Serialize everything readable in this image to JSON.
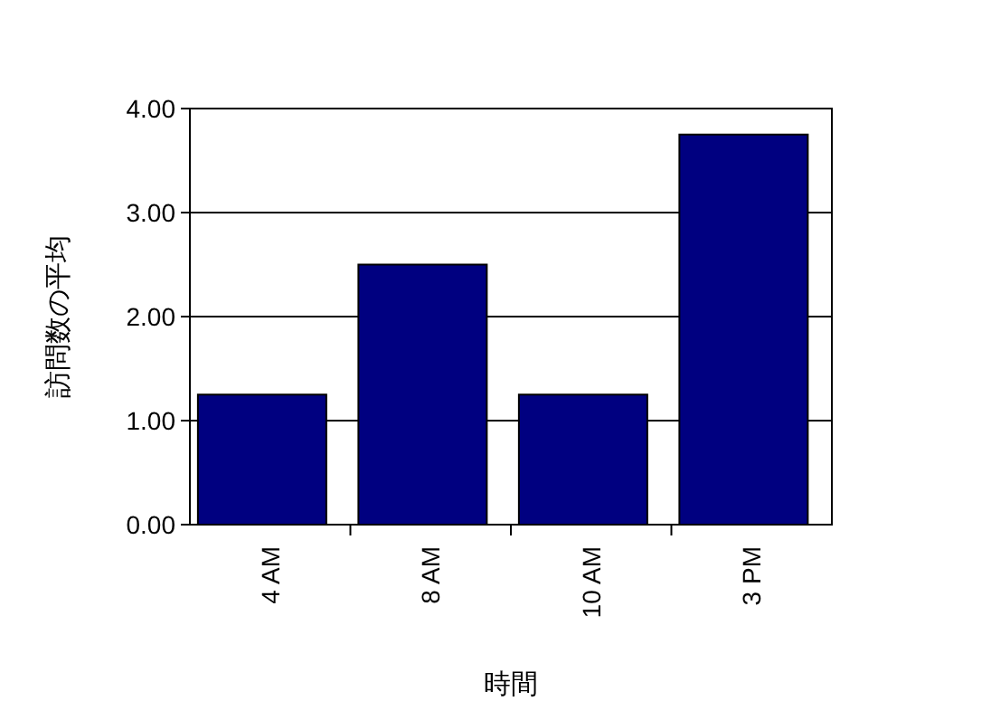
{
  "chart_data": {
    "type": "bar",
    "xlabel": "時間",
    "ylabel": "訪問数の平均",
    "categories": [
      "4 AM",
      "8 AM",
      "10 AM",
      "3 PM"
    ],
    "values": [
      1.25,
      2.5,
      1.25,
      3.75
    ],
    "color": "#000080",
    "ylim": [
      0,
      4
    ],
    "yticks": [
      {
        "value": 0,
        "label": "0.00"
      },
      {
        "value": 1,
        "label": "1.00"
      },
      {
        "value": 2,
        "label": "2.00"
      },
      {
        "value": 3,
        "label": "3.00"
      },
      {
        "value": 4,
        "label": "4.00"
      }
    ],
    "grid": "y"
  }
}
